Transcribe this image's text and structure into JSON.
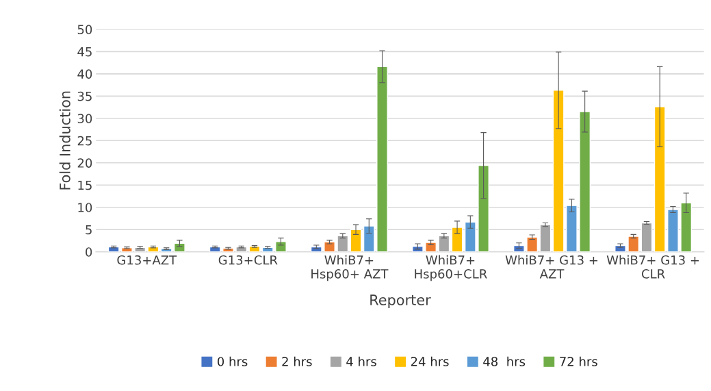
{
  "chart_data": {
    "type": "bar",
    "xlabel": "Reporter",
    "ylabel": "Fold Induction",
    "categories": [
      "G13+AZT",
      "G13+CLR",
      "WhiB7+\nHsp60+ AZT",
      "WhiB7+\nHsp60+CLR",
      "WhiB7+ G13 +\nAZT",
      "WhiB7+ G13 +\nCLR"
    ],
    "series": [
      {
        "name": "0 hrs",
        "color": "#4472c4",
        "values": [
          1.1,
          1.1,
          1.1,
          1.2,
          1.4,
          1.4
        ],
        "errors": [
          0.2,
          0.2,
          0.4,
          0.6,
          0.6,
          0.4
        ]
      },
      {
        "name": "2 hrs",
        "color": "#ed7d31",
        "values": [
          0.9,
          0.8,
          2.2,
          2.1,
          3.3,
          3.5
        ],
        "errors": [
          0.2,
          0.2,
          0.4,
          0.5,
          0.5,
          0.4
        ]
      },
      {
        "name": "4 hrs",
        "color": "#a5a5a5",
        "values": [
          1.0,
          1.1,
          3.6,
          3.6,
          6.1,
          6.5
        ],
        "errors": [
          0.2,
          0.2,
          0.5,
          0.5,
          0.4,
          0.3
        ]
      },
      {
        "name": "24 hrs",
        "color": "#ffc000",
        "values": [
          1.1,
          1.2,
          5.0,
          5.5,
          36.3,
          32.6
        ],
        "errors": [
          0.2,
          0.2,
          1.1,
          1.4,
          8.6,
          9.0
        ]
      },
      {
        "name": "48  hrs",
        "color": "#5b9bd5",
        "values": [
          0.7,
          1.0,
          5.8,
          6.7,
          10.4,
          9.5
        ],
        "errors": [
          0.2,
          0.2,
          1.6,
          1.4,
          1.4,
          0.7
        ]
      },
      {
        "name": "72 hrs",
        "color": "#70ad47",
        "values": [
          1.9,
          2.3,
          41.6,
          19.4,
          31.5,
          11.0
        ],
        "errors": [
          0.7,
          0.8,
          3.6,
          7.4,
          4.6,
          2.2
        ]
      }
    ],
    "ylim": [
      0,
      50
    ],
    "yticks": [
      0,
      5,
      10,
      15,
      20,
      25,
      30,
      35,
      40,
      45,
      50
    ],
    "grid": "y",
    "legend": "bottom"
  }
}
